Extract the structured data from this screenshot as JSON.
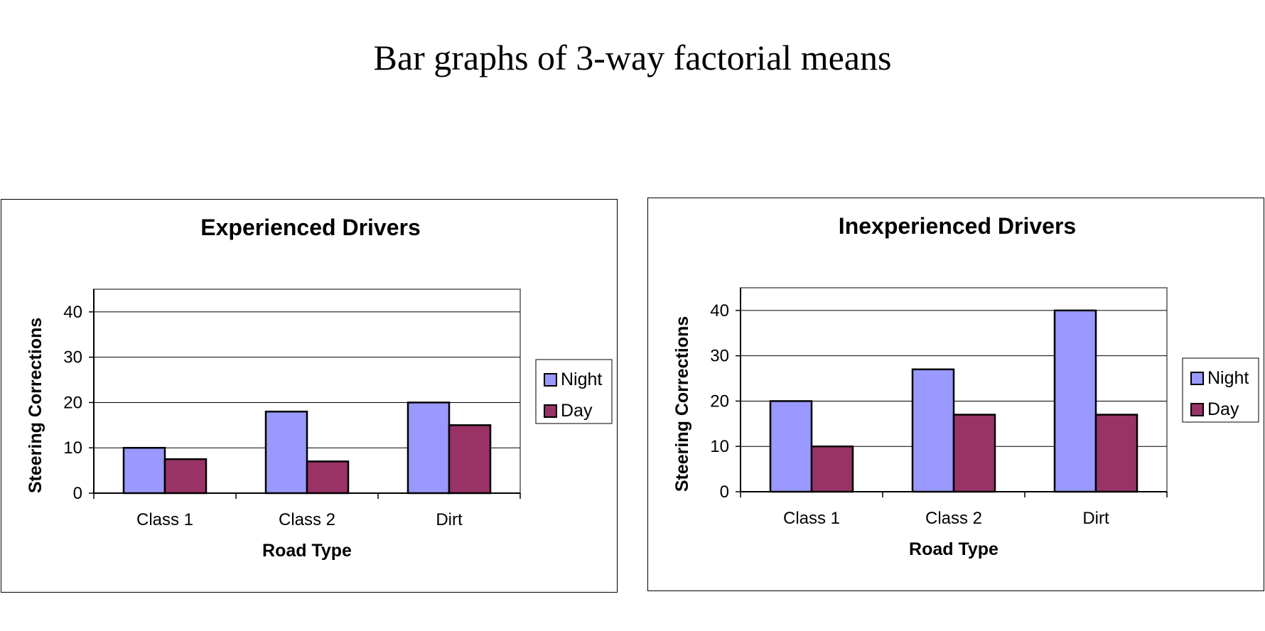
{
  "page": {
    "title": "Bar graphs of 3-way factorial means"
  },
  "colors": {
    "night": "#9999ff",
    "day": "#993366",
    "grid": "#000000",
    "plot_border": "#808080"
  },
  "chart_data": [
    {
      "type": "bar",
      "title": "Experienced Drivers",
      "xlabel": "Road Type",
      "ylabel": "Steering Corrections",
      "categories": [
        "Class 1",
        "Class 2",
        "Dirt"
      ],
      "series": [
        {
          "name": "Night",
          "values": [
            10,
            18,
            20
          ]
        },
        {
          "name": "Day",
          "values": [
            7.5,
            7,
            15
          ]
        }
      ],
      "ylim": [
        0,
        45
      ],
      "yticks": [
        0,
        10,
        20,
        30,
        40
      ],
      "grid": true,
      "legend": "right"
    },
    {
      "type": "bar",
      "title": "Inexperienced Drivers",
      "xlabel": "Road Type",
      "ylabel": "Steering Corrections",
      "categories": [
        "Class 1",
        "Class 2",
        "Dirt"
      ],
      "series": [
        {
          "name": "Night",
          "values": [
            20,
            27,
            40
          ]
        },
        {
          "name": "Day",
          "values": [
            10,
            17,
            17
          ]
        }
      ],
      "ylim": [
        0,
        45
      ],
      "yticks": [
        0,
        10,
        20,
        30,
        40
      ],
      "grid": true,
      "legend": "right"
    }
  ]
}
